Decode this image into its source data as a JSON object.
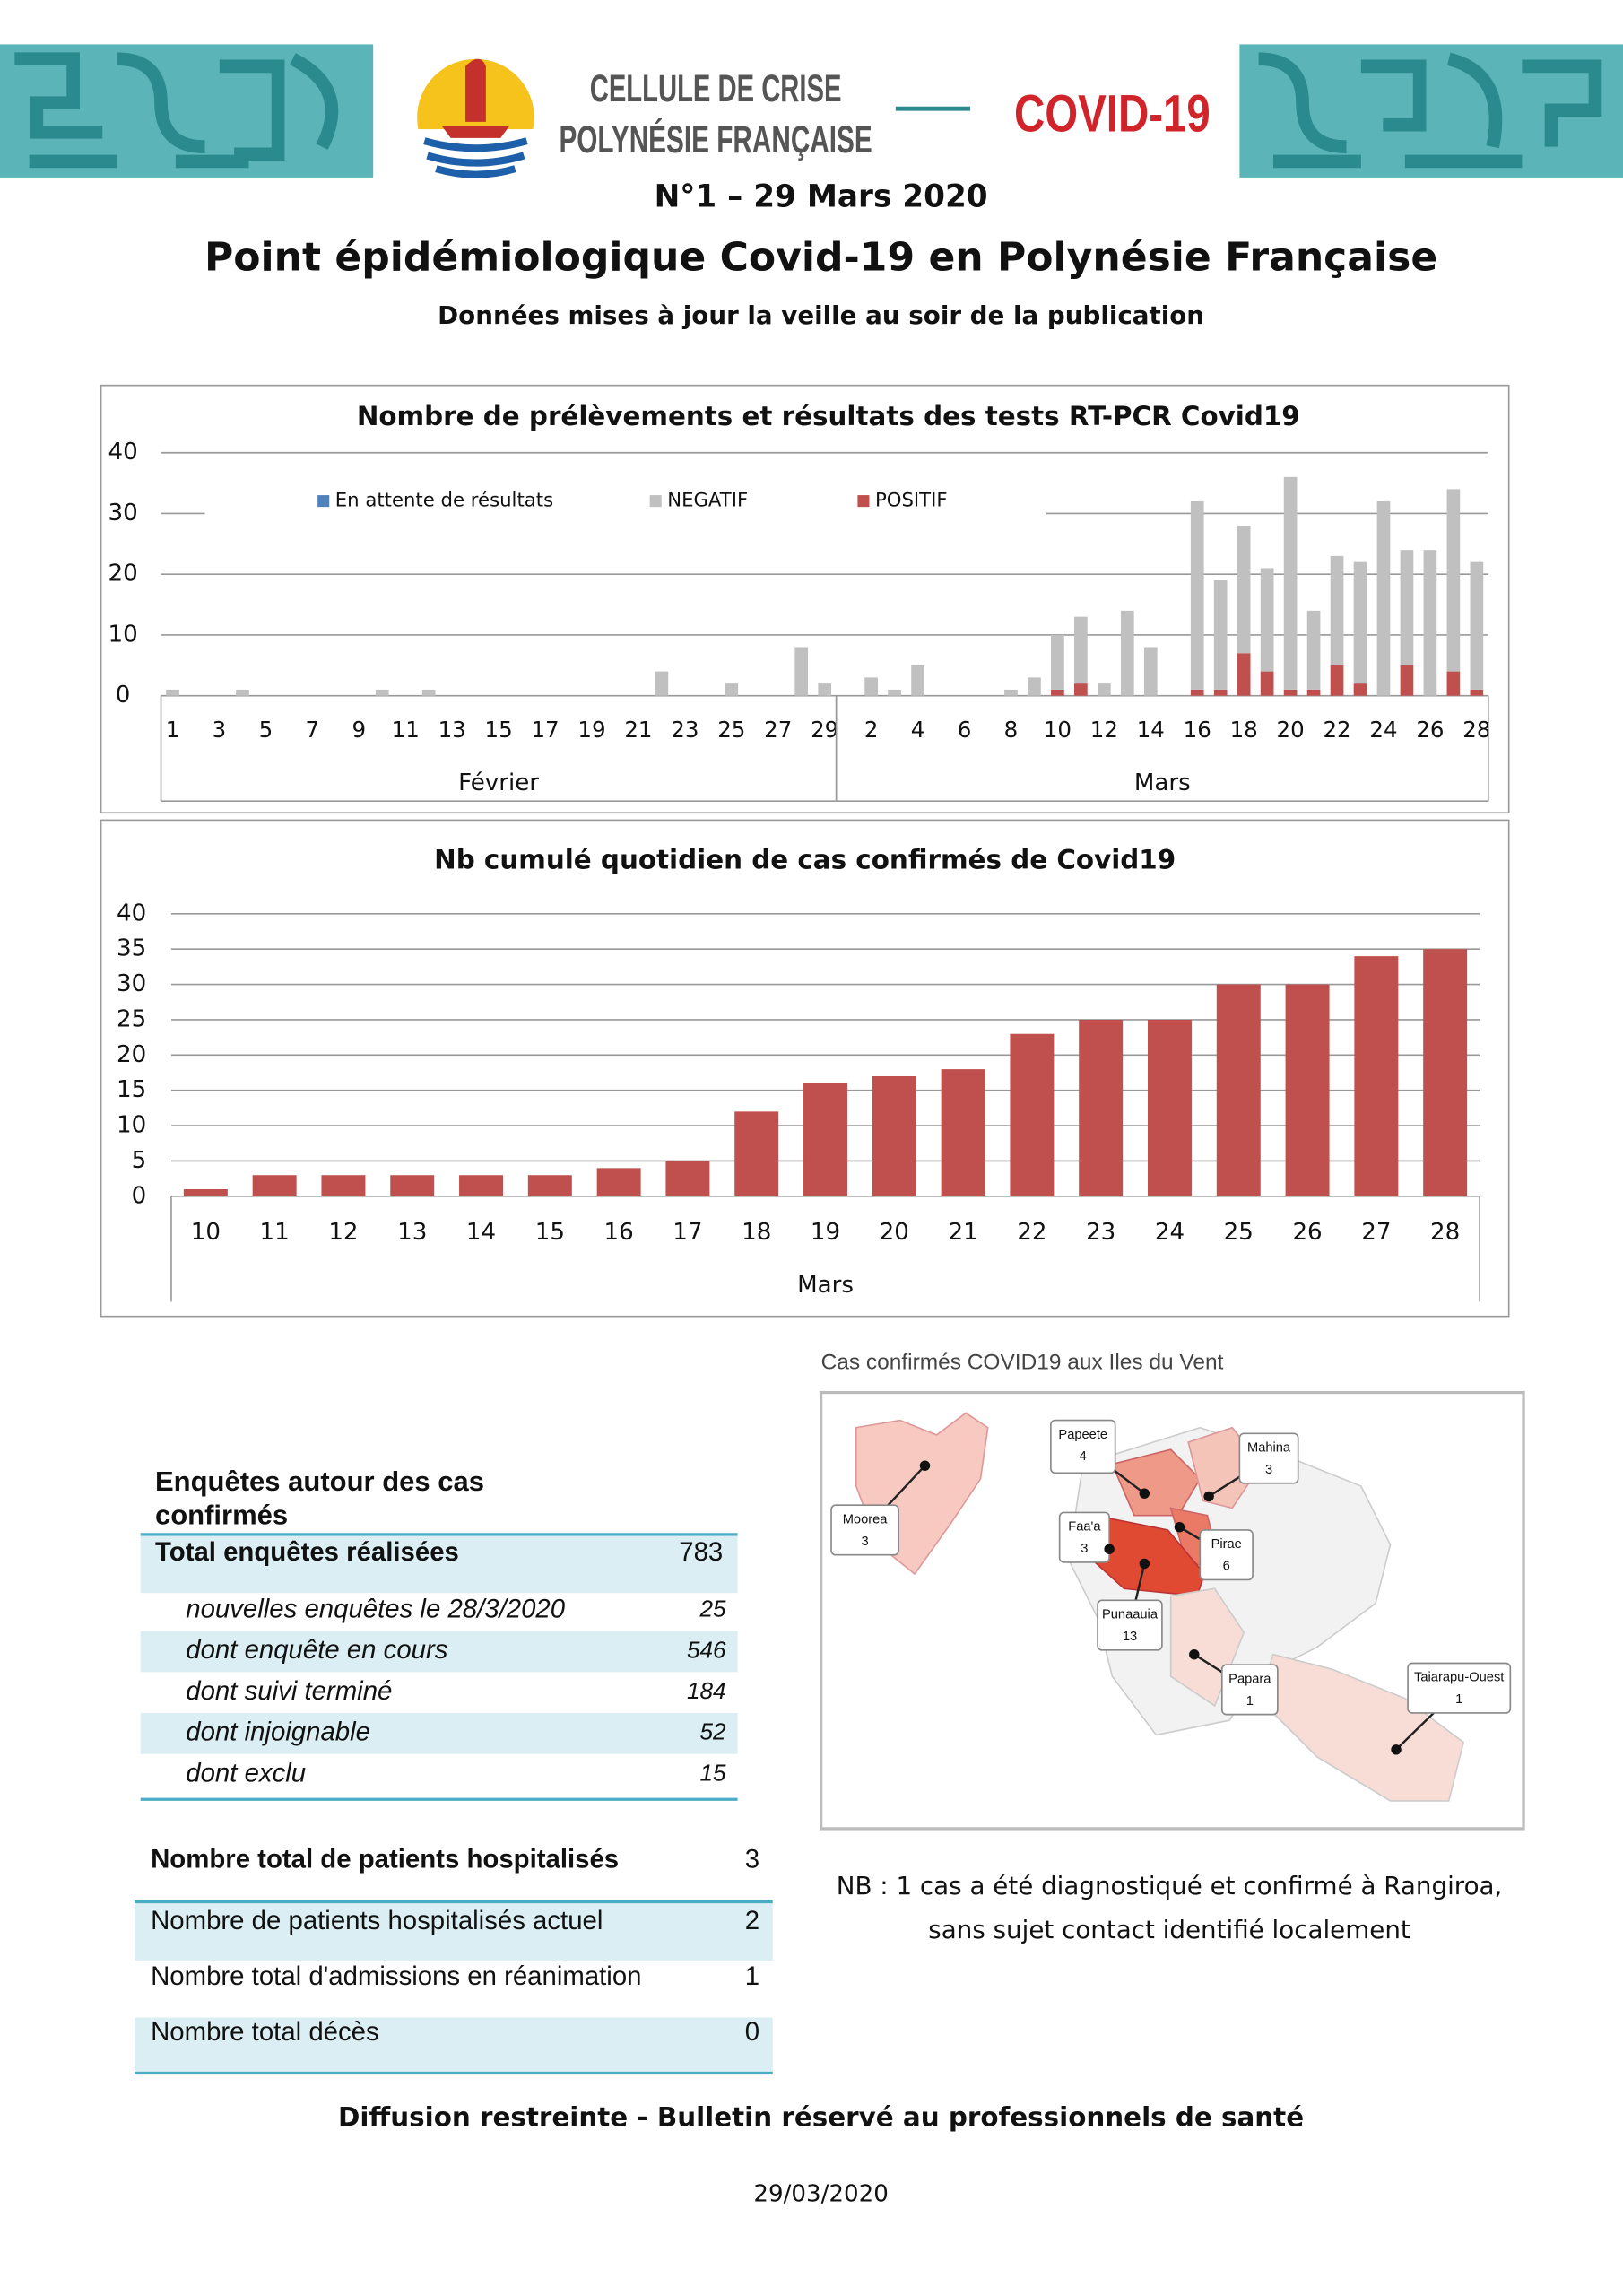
{
  "header": {
    "org_line1": "CELLULE DE CRISE",
    "org_line2": "POLYNÉSIE FRANÇAISE",
    "badge": "COVID-19",
    "issue": "N°1 – 29 Mars 2020",
    "title": "Point épidémiologique Covid-19 en Polynésie Française",
    "subtitle": "Données mises à jour la veille au soir de la publication"
  },
  "chart_data": [
    {
      "type": "stacked_bar",
      "title": "Nombre de prélèvements et résultats des tests RT-PCR Covid19",
      "groups": [
        {
          "label": "Février",
          "categories": [
            "1",
            null,
            "3",
            null,
            "5",
            null,
            "7",
            null,
            "9",
            null,
            "11",
            null,
            "13",
            null,
            "15",
            null,
            "17",
            null,
            "19",
            null,
            "21",
            null,
            "23",
            null,
            "25",
            null,
            "27",
            null,
            "29"
          ]
        },
        {
          "label": "Mars",
          "categories": [
            null,
            "2",
            null,
            "4",
            null,
            "6",
            null,
            "8",
            null,
            "10",
            null,
            "12",
            null,
            "14",
            null,
            "16",
            null,
            "18",
            null,
            "20",
            null,
            "22",
            null,
            "24",
            null,
            "26",
            null,
            "28"
          ]
        }
      ],
      "series": [
        {
          "name": "En attente de résultats",
          "color": "#4f81bd",
          "values": [
            0,
            0,
            0,
            0,
            0,
            0,
            0,
            0,
            0,
            0,
            0,
            0,
            0,
            0,
            0,
            0,
            0,
            0,
            0,
            0,
            0,
            0,
            0,
            0,
            0,
            0,
            0,
            0,
            0,
            0,
            0,
            0,
            0,
            0,
            0,
            0,
            0,
            0,
            0,
            0,
            0,
            0,
            0,
            0,
            0,
            0,
            0,
            0,
            0,
            0,
            0,
            0,
            0,
            0,
            0,
            0,
            0
          ]
        },
        {
          "name": "NEGATIF",
          "color": "#c0c0c0",
          "values": [
            1,
            0,
            0,
            1,
            0,
            0,
            0,
            0,
            0,
            1,
            0,
            1,
            0,
            0,
            0,
            0,
            0,
            0,
            0,
            0,
            0,
            4,
            0,
            0,
            2,
            0,
            0,
            8,
            2,
            0,
            3,
            1,
            5,
            0,
            0,
            0,
            1,
            3,
            9,
            11,
            2,
            14,
            8,
            0,
            31,
            18,
            21,
            17,
            35,
            13,
            18,
            20,
            32,
            19,
            24,
            30,
            21
          ]
        },
        {
          "name": "POSITIF",
          "color": "#c0504d",
          "values": [
            0,
            0,
            0,
            0,
            0,
            0,
            0,
            0,
            0,
            0,
            0,
            0,
            0,
            0,
            0,
            0,
            0,
            0,
            0,
            0,
            0,
            0,
            0,
            0,
            0,
            0,
            0,
            0,
            0,
            0,
            0,
            0,
            0,
            0,
            0,
            0,
            0,
            0,
            1,
            2,
            0,
            0,
            0,
            0,
            1,
            1,
            7,
            4,
            1,
            1,
            5,
            2,
            0,
            5,
            0,
            4,
            1
          ]
        }
      ],
      "ylim": [
        0,
        40
      ],
      "yticks": [
        0,
        10,
        20,
        30,
        40
      ],
      "grid": true,
      "legend": "top"
    },
    {
      "type": "bar",
      "title": "Nb cumulé quotidien de cas confirmés de Covid19",
      "categories": [
        "10",
        "11",
        "12",
        "13",
        "14",
        "15",
        "16",
        "17",
        "18",
        "19",
        "20",
        "21",
        "22",
        "23",
        "24",
        "25",
        "26",
        "27",
        "28"
      ],
      "values": [
        1,
        3,
        3,
        3,
        3,
        3,
        4,
        5,
        12,
        16,
        17,
        18,
        23,
        25,
        25,
        30,
        30,
        34,
        35
      ],
      "color": "#c0504d",
      "xlabel": "Mars",
      "ylim": [
        0,
        40
      ],
      "yticks": [
        0,
        5,
        10,
        15,
        20,
        25,
        30,
        35,
        40
      ],
      "grid": true
    }
  ],
  "map": {
    "title": "Cas confirmés COVID19 aux Iles du Vent",
    "areas": [
      {
        "name": "Moorea",
        "value": "3"
      },
      {
        "name": "Papeete",
        "value": "4"
      },
      {
        "name": "Mahina",
        "value": "3"
      },
      {
        "name": "Faa'a",
        "value": "3"
      },
      {
        "name": "Pirae",
        "value": "6"
      },
      {
        "name": "Punaauia",
        "value": "13"
      },
      {
        "name": "Papara",
        "value": "1"
      },
      {
        "name": "Taiarapu-Ouest",
        "value": "1"
      }
    ]
  },
  "investigations": {
    "title": [
      "Enquêtes autour des cas",
      "confirmés"
    ],
    "rows": [
      [
        "Total enquêtes réalisées",
        "783"
      ],
      [
        "nouvelles enquêtes le 28/3/2020",
        "25"
      ],
      [
        "dont enquête en cours",
        "546"
      ],
      [
        "dont suivi terminé",
        "184"
      ],
      [
        "dont injoignable",
        "52"
      ],
      [
        "dont exclu",
        "15"
      ]
    ]
  },
  "hospital": {
    "rows": [
      [
        "Nombre total de patients hospitalisés",
        "3"
      ],
      [
        "Nombre de patients hospitalisés actuel",
        "2"
      ],
      [
        "Nombre total d'admissions en réanimation",
        "1"
      ],
      [
        "Nombre total décès",
        "0"
      ]
    ]
  },
  "note": [
    "NB : 1 cas a été diagnostiqué et confirmé à Rangiroa,",
    "sans sujet contact identifié localement"
  ],
  "footer": "Diffusion restreinte - Bulletin réservé au professionnels de santé",
  "date": "29/03/2020"
}
